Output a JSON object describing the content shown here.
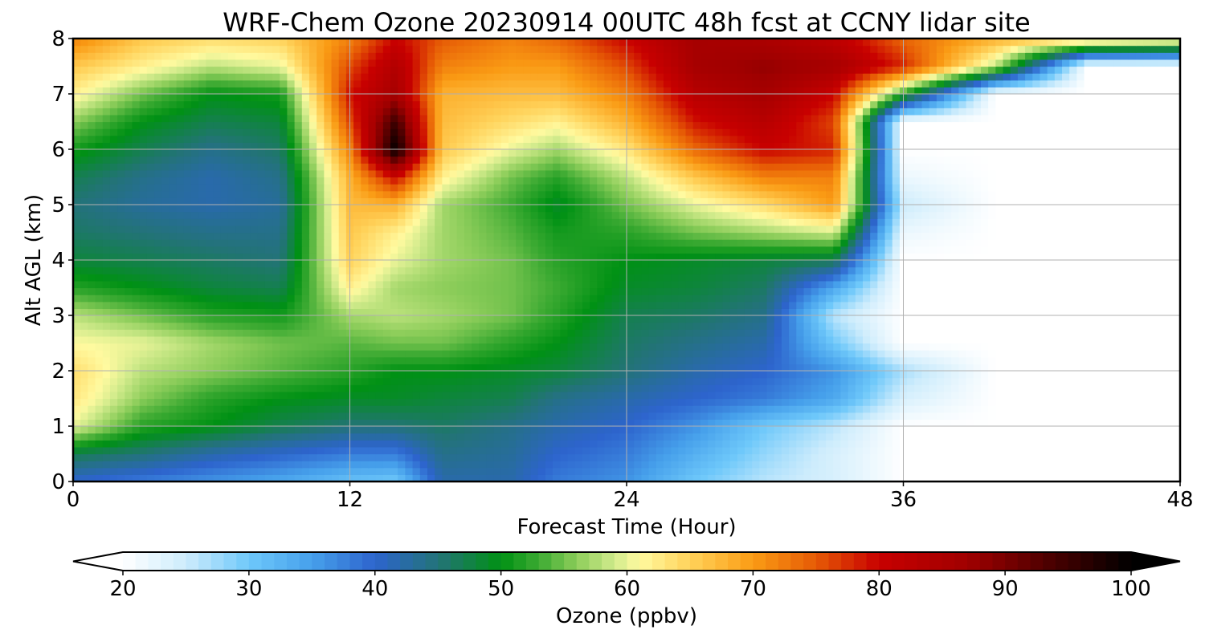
{
  "chart_data": {
    "type": "heatmap",
    "title": "WRF-Chem Ozone  20230914 00UTC 48h fcst at CCNY lidar site",
    "xlabel": "Forecast Time (Hour)",
    "ylabel": "Alt AGL (km)",
    "xlim": [
      0,
      48
    ],
    "ylim": [
      0,
      8
    ],
    "xticks": [
      "0",
      "12",
      "24",
      "36",
      "48"
    ],
    "yticks": [
      "0",
      "1",
      "2",
      "3",
      "4",
      "5",
      "6",
      "7",
      "8"
    ],
    "grid": true,
    "x_hours": [
      0,
      3,
      6,
      9,
      12,
      14,
      16,
      19,
      21,
      24,
      27,
      30,
      33,
      36,
      40,
      44,
      48
    ],
    "y_km": [
      0,
      0.5,
      1,
      1.5,
      2,
      2.5,
      3,
      3.5,
      4,
      4.5,
      5,
      5.5,
      6,
      6.5,
      7,
      7.5,
      8
    ],
    "ozone_ppbv": [
      [
        40,
        38,
        36,
        34,
        31,
        30,
        42,
        42,
        38,
        36,
        30,
        26,
        24,
        20,
        20,
        20,
        20
      ],
      [
        47,
        45,
        42,
        40,
        38,
        38,
        44,
        43,
        40,
        38,
        33,
        28,
        24,
        20,
        20,
        20,
        20
      ],
      [
        60,
        52,
        50,
        47,
        45,
        45,
        46,
        44,
        42,
        40,
        36,
        30,
        26,
        20,
        20,
        20,
        20
      ],
      [
        63,
        56,
        52,
        50,
        49,
        49,
        48,
        47,
        44,
        42,
        40,
        38,
        34,
        24,
        20,
        20,
        20
      ],
      [
        64,
        58,
        56,
        54,
        52,
        50,
        50,
        49,
        48,
        45,
        42,
        40,
        36,
        27,
        20,
        20,
        20
      ],
      [
        61,
        60,
        57,
        55,
        54,
        55,
        55,
        52,
        50,
        46,
        44,
        42,
        30,
        20,
        20,
        20,
        20
      ],
      [
        58,
        55,
        52,
        51,
        57,
        58,
        57,
        55,
        52,
        47,
        46,
        44,
        26,
        20,
        20,
        20,
        20
      ],
      [
        52,
        50,
        48,
        47,
        62,
        57,
        56,
        55,
        53,
        49,
        48,
        46,
        34,
        20,
        20,
        20,
        20
      ],
      [
        48,
        47,
        46,
        45,
        65,
        60,
        57,
        55,
        52,
        50,
        49,
        48,
        47,
        20,
        20,
        20,
        20
      ],
      [
        46,
        45,
        44,
        44,
        66,
        62,
        57,
        54,
        51,
        52,
        55,
        57,
        59,
        22,
        20,
        20,
        20
      ],
      [
        45,
        43,
        42,
        43,
        67,
        68,
        57,
        53,
        49,
        55,
        60,
        64,
        70,
        25,
        20,
        20,
        20
      ],
      [
        47,
        44,
        42,
        44,
        68,
        80,
        62,
        55,
        52,
        58,
        66,
        72,
        72,
        22,
        20,
        20,
        20
      ],
      [
        51,
        47,
        44,
        46,
        72,
        100,
        66,
        60,
        57,
        63,
        74,
        80,
        78,
        20,
        20,
        20,
        20
      ],
      [
        56,
        50,
        47,
        48,
        76,
        95,
        67,
        64,
        62,
        68,
        79,
        83,
        76,
        20,
        20,
        20,
        20
      ],
      [
        62,
        55,
        50,
        51,
        79,
        86,
        68,
        67,
        67,
        72,
        83,
        86,
        80,
        52,
        20,
        20,
        20
      ],
      [
        66,
        62,
        58,
        60,
        76,
        84,
        72,
        70,
        70,
        76,
        86,
        88,
        86,
        78,
        58,
        20,
        20
      ],
      [
        72,
        66,
        64,
        65,
        72,
        80,
        75,
        72,
        74,
        80,
        86,
        85,
        82,
        74,
        68,
        66,
        64
      ]
    ],
    "colorbar": {
      "label": "Ozone  (ppbv)",
      "min": 20,
      "max": 100,
      "ticks": [
        "20",
        "30",
        "40",
        "50",
        "60",
        "70",
        "80",
        "90",
        "100"
      ],
      "extend": "both"
    }
  }
}
